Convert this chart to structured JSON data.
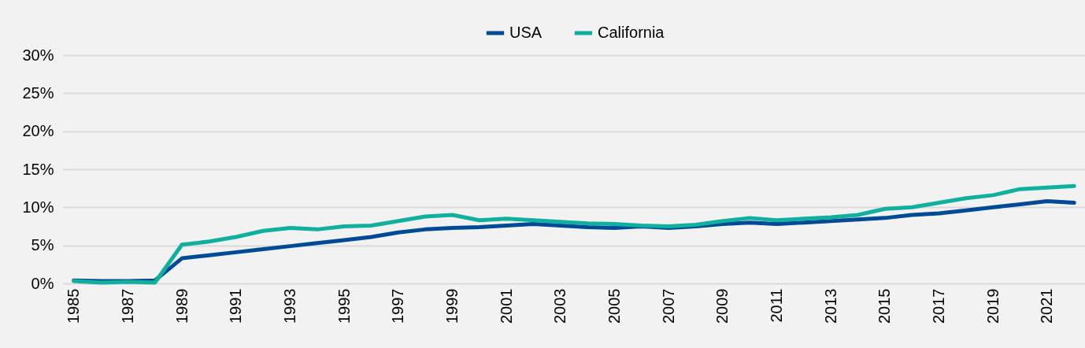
{
  "chart_data": {
    "type": "line",
    "categories": [
      "1985",
      null,
      "1987",
      null,
      "1989",
      null,
      "1991",
      null,
      "1993",
      null,
      "1995",
      null,
      "1997",
      null,
      "1999",
      null,
      "2001",
      null,
      "2003",
      null,
      "2005",
      null,
      "2007",
      null,
      "2009",
      null,
      "2011",
      null,
      "2013",
      null,
      "2015",
      null,
      "2017",
      null,
      "2019",
      null,
      "2021",
      null
    ],
    "series": [
      {
        "name": "USA",
        "color": "#004a98",
        "values": [
          0.4,
          0.3,
          0.3,
          0.4,
          3.3,
          3.7,
          4.1,
          4.5,
          4.9,
          5.3,
          5.7,
          6.1,
          6.7,
          7.1,
          7.3,
          7.4,
          7.6,
          7.8,
          7.6,
          7.4,
          7.3,
          7.5,
          7.3,
          7.5,
          7.8,
          8.0,
          7.8,
          8.0,
          8.2,
          8.4,
          8.6,
          9.0,
          9.2,
          9.6,
          10.0,
          10.4,
          10.8,
          10.6
        ]
      },
      {
        "name": "California",
        "color": "#10b09e",
        "values": [
          0.3,
          0.1,
          0.2,
          0.1,
          5.1,
          5.5,
          6.1,
          6.9,
          7.3,
          7.1,
          7.5,
          7.6,
          8.2,
          8.8,
          9.0,
          8.3,
          8.5,
          8.3,
          8.1,
          7.9,
          7.8,
          7.6,
          7.5,
          7.7,
          8.2,
          8.6,
          8.3,
          8.5,
          8.7,
          9.0,
          9.8,
          10.0,
          10.6,
          11.2,
          11.6,
          12.4,
          12.6,
          12.8
        ]
      }
    ],
    "ylim": [
      0,
      30
    ],
    "yticks": [
      {
        "value": 0,
        "label": "0%"
      },
      {
        "value": 5,
        "label": "5%"
      },
      {
        "value": 10,
        "label": "10%"
      },
      {
        "value": 15,
        "label": "15%"
      },
      {
        "value": 20,
        "label": "20%"
      },
      {
        "value": 25,
        "label": "25%"
      },
      {
        "value": 30,
        "label": "30%"
      }
    ],
    "grid": "y",
    "legend": "top",
    "marker": "none",
    "line_style": "solid"
  }
}
